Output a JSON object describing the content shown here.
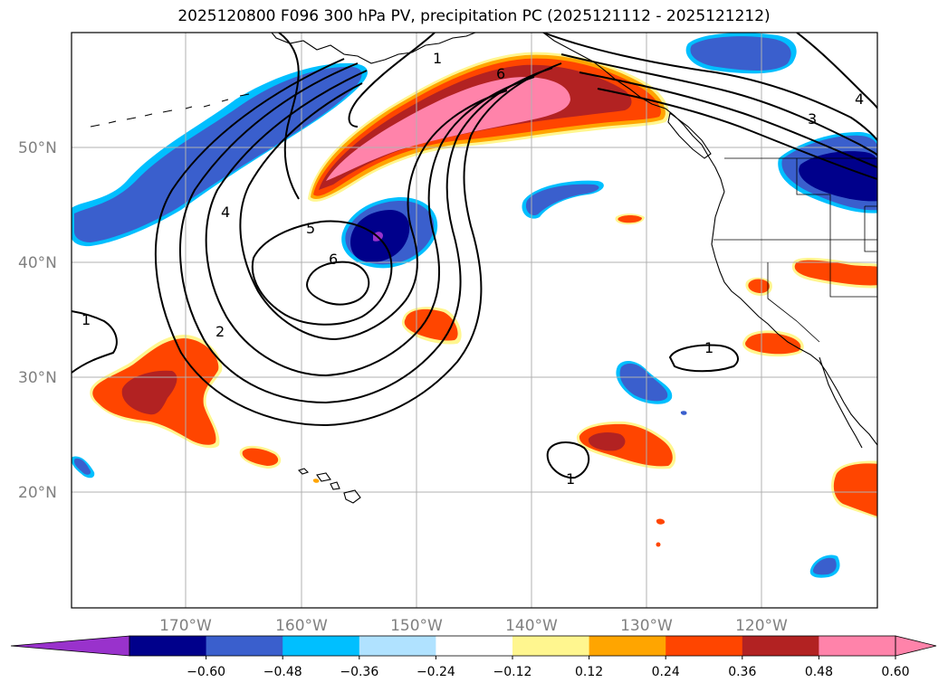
{
  "title": "2025120800 F096 300 hPa PV, precipitation PC (2025121112 - 2025121212)",
  "lat_labels": [
    "50°N",
    "40°N",
    "30°N",
    "20°N"
  ],
  "lon_labels": [
    "170°W",
    "160°W",
    "150°W",
    "140°W",
    "130°W",
    "120°W"
  ],
  "colorbar": {
    "ticks": [
      "−0.60",
      "−0.48",
      "−0.36",
      "−0.24",
      "−0.12",
      "0.12",
      "0.24",
      "0.36",
      "0.48",
      "0.60"
    ],
    "colors": [
      "#9932cc",
      "#00008b",
      "#3a5fcd",
      "#00bfff",
      "#b0e2ff",
      "#ffffff",
      "#fff68f",
      "#ffa500",
      "#ff4500",
      "#b22222",
      "#ff83aa",
      "#ff83aa"
    ]
  },
  "contour_labels": [
    "1",
    "2",
    "3",
    "4",
    "4",
    "5",
    "6",
    "6",
    "1",
    "1",
    "1"
  ]
}
